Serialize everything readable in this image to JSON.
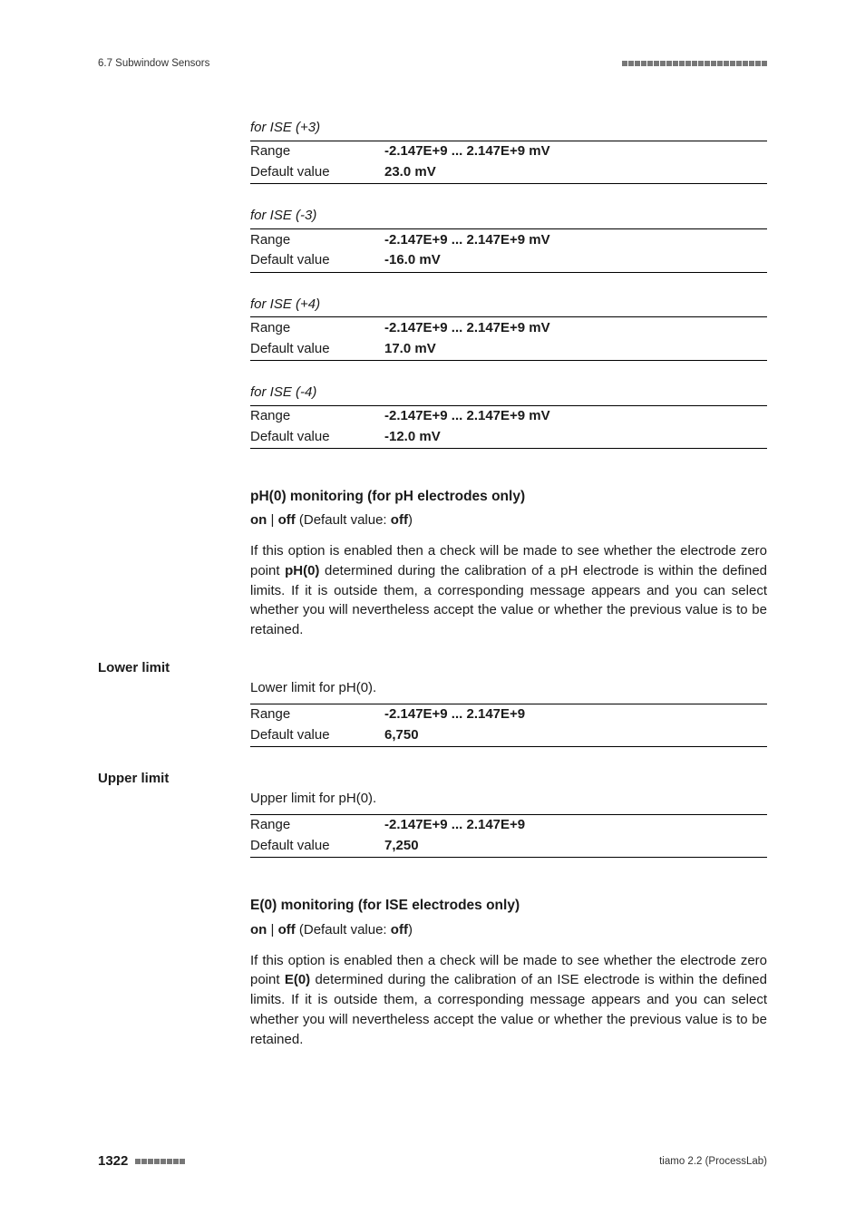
{
  "header": {
    "section_label": "6.7 Subwindow Sensors",
    "rule_squares": 23
  },
  "ise_blocks": [
    {
      "title": "for ISE (+3)",
      "range_label": "Range",
      "range_value": "-2.147E+9 ... 2.147E+9 mV",
      "default_label": "Default value",
      "default_value": "23.0 mV"
    },
    {
      "title": "for ISE (-3)",
      "range_label": "Range",
      "range_value": "-2.147E+9 ... 2.147E+9 mV",
      "default_label": "Default value",
      "default_value": "-16.0 mV"
    },
    {
      "title": "for ISE (+4)",
      "range_label": "Range",
      "range_value": "-2.147E+9 ... 2.147E+9 mV",
      "default_label": "Default value",
      "default_value": "17.0 mV"
    },
    {
      "title": "for ISE (-4)",
      "range_label": "Range",
      "range_value": "-2.147E+9 ... 2.147E+9 mV",
      "default_label": "Default value",
      "default_value": "-12.0 mV"
    }
  ],
  "ph0_section": {
    "title": "pH(0) monitoring (for pH electrodes only)",
    "on": "on",
    "sep": " | ",
    "off": "off",
    "default_open": " (Default value: ",
    "default_val": "off",
    "default_close": ")",
    "para": "If this option is enabled then a check will be made to see whether the electrode zero point pH(0) determined during the calibration of a pH electrode is within the defined limits. If it is outside them, a corresponding message appears and you can select whether you will nevertheless accept the value or whether the previous value is to be retained.",
    "para_pre": "If this option is enabled then a check will be made to see whether the electrode zero point ",
    "para_bold": "pH(0)",
    "para_post": " determined during the calibration of a pH electrode is within the defined limits. If it is outside them, a corresponding message appears and you can select whether you will nevertheless accept the value or whether the previous value is to be retained."
  },
  "lower_limit": {
    "label": "Lower limit",
    "intro": "Lower limit for pH(0).",
    "range_label": "Range",
    "range_value": "-2.147E+9 ... 2.147E+9",
    "default_label": "Default value",
    "default_value": "6,750"
  },
  "upper_limit": {
    "label": "Upper limit",
    "intro": "Upper limit for pH(0).",
    "range_label": "Range",
    "range_value": "-2.147E+9 ... 2.147E+9",
    "default_label": "Default value",
    "default_value": "7,250"
  },
  "e0_section": {
    "title": "E(0) monitoring (for ISE electrodes only)",
    "on": "on",
    "sep": " | ",
    "off": "off",
    "default_open": " (Default value: ",
    "default_val": "off",
    "default_close": ")",
    "para_pre": "If this option is enabled then a check will be made to see whether the electrode zero point ",
    "para_bold": "E(0)",
    "para_post": " determined during the calibration of an ISE electrode is within the defined limits. If it is outside them, a corresponding message appears and you can select whether you will nevertheless accept the value or whether the previous value is to be retained."
  },
  "footer": {
    "page": "1322",
    "squares": 8,
    "right": "tiamo 2.2 (ProcessLab)"
  }
}
